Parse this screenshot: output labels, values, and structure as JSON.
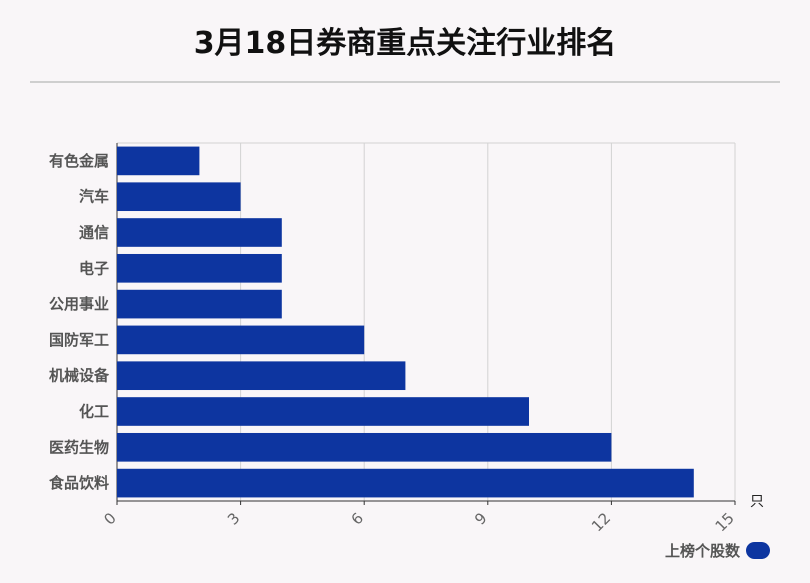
{
  "title": "3月18日券商重点关注行业排名",
  "chart_data": {
    "type": "bar",
    "orientation": "horizontal",
    "categories": [
      "有色金属",
      "汽车",
      "通信",
      "电子",
      "公用事业",
      "国防军工",
      "机械设备",
      "化工",
      "医药生物",
      "食品饮料"
    ],
    "series": [
      {
        "name": "上榜个股数",
        "values": [
          2,
          3,
          4,
          4,
          4,
          6,
          7,
          10,
          12,
          14
        ]
      }
    ],
    "xlim": [
      0,
      15
    ],
    "xticks": [
      "0",
      "3",
      "6",
      "9",
      "12",
      "15"
    ],
    "xunit": "只",
    "bar_color": "#0d35a0",
    "grid": true,
    "legend_position": "bottom-right"
  }
}
